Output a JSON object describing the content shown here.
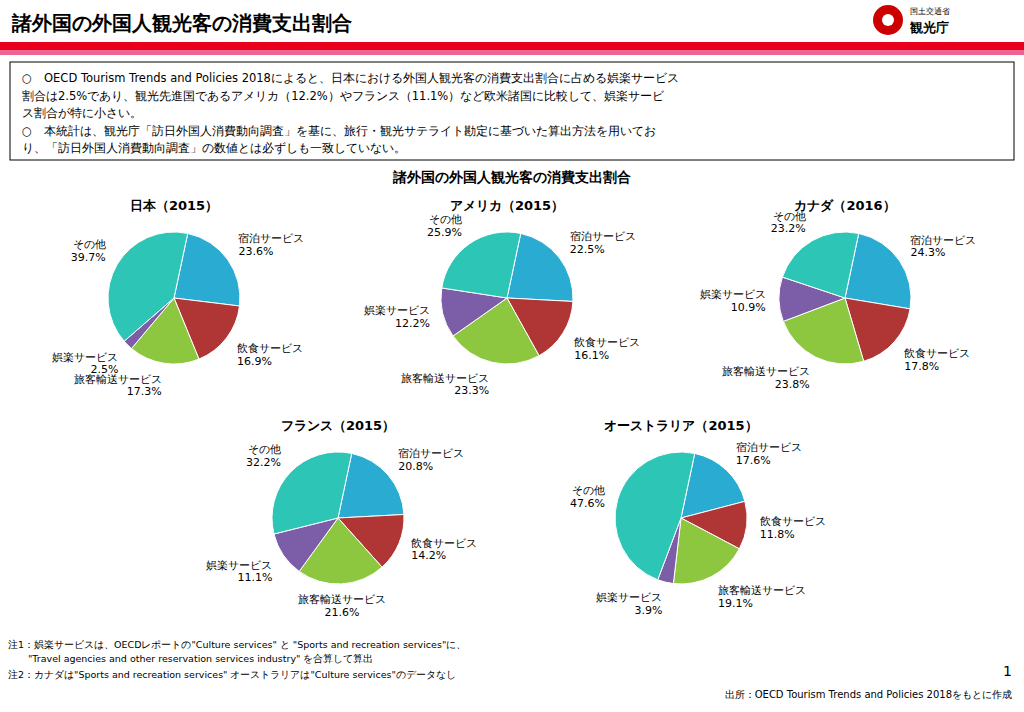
{
  "title": "諸外国の外国人観光客の消費支出割合",
  "subtitle": "諸外国の外国人観光客の消費支出割合",
  "annotations": [
    "○　OECD Tourism Trends and Policies 2018によると、日本における外国人観光客の消費支出割合に占める娯楽サービス",
    "割合は2.5%であり、観光先進国であるアメリカ（12.2%）やフランス（11.1%）など欧米諸国に比較して、娯楽サービ",
    "ス割合が特に小さい。",
    "○　本統計は、観光庁「訪日外国人消費動向調査」を基に、旅行・観光サテライト勘定に基づいた算出方法を用いてお",
    "り、「訪日外国人消費動向調査」の数値とは必ずしも一致していない。",
    "注1：娯楽サービスは、OECDレポートの\"Culture services\" と \"Sports and recreation services\"に、",
    "　　\"Travel agencies and other reservation services industry\" を合算して算出",
    "注2：カナダは\"Sports and recreation services\" オーストラリアは\"Culture services\"のデータなし",
    "出所：OECD Tourism Trends and Policies 2018をもとに作成",
    "1",
    "国土交通省",
    "観光庁"
  ],
  "chart_data": [
    {
      "type": "pie",
      "title": "日本（2015）",
      "categories": [
        "宿泊サービス",
        "飲食サービス",
        "旅客輸送サービス",
        "娯楽サービス",
        "その他"
      ],
      "values": [
        23.6,
        16.9,
        17.3,
        2.5,
        39.7
      ],
      "value_labels": [
        "23.6%",
        "16.9%",
        "17.3%",
        "2.5%",
        "39.7%"
      ],
      "colors": [
        "#2aabd2",
        "#b03535",
        "#8dc63f",
        "#7b5ea7",
        "#2dc5b6"
      ],
      "data_labels": true
    },
    {
      "type": "pie",
      "title": "アメリカ（2015）",
      "categories": [
        "宿泊サービス",
        "飲食サービス",
        "旅客輸送サービス",
        "娯楽サービス",
        "その他"
      ],
      "values": [
        22.5,
        16.1,
        23.3,
        12.2,
        25.9
      ],
      "value_labels": [
        "22.5%",
        "16.1%",
        "23.3%",
        "12.2%",
        "25.9%"
      ],
      "colors": [
        "#2aabd2",
        "#b03535",
        "#8dc63f",
        "#7b5ea7",
        "#2dc5b6"
      ],
      "data_labels": true
    },
    {
      "type": "pie",
      "title": "カナダ（2016）",
      "categories": [
        "宿泊サービス",
        "飲食サービス",
        "旅客輸送サービス",
        "娯楽サービス",
        "その他"
      ],
      "values": [
        24.3,
        17.8,
        23.8,
        10.9,
        23.2
      ],
      "value_labels": [
        "24.3%",
        "17.8%",
        "23.8%",
        "10.9%",
        "23.2%"
      ],
      "colors": [
        "#2aabd2",
        "#b03535",
        "#8dc63f",
        "#7b5ea7",
        "#2dc5b6"
      ],
      "data_labels": true
    },
    {
      "type": "pie",
      "title": "フランス（2015）",
      "categories": [
        "宿泊サービス",
        "飲食サービス",
        "旅客輸送サービス",
        "娯楽サービス",
        "その他"
      ],
      "values": [
        20.8,
        14.2,
        21.6,
        11.1,
        32.2
      ],
      "value_labels": [
        "20.8%",
        "14.2%",
        "21.6%",
        "11.1%",
        "32.2%"
      ],
      "colors": [
        "#2aabd2",
        "#b03535",
        "#8dc63f",
        "#7b5ea7",
        "#2dc5b6"
      ],
      "data_labels": true
    },
    {
      "type": "pie",
      "title": "オーストラリア（2015）",
      "categories": [
        "宿泊サービス",
        "飲食サービス",
        "旅客輸送サービス",
        "娯楽サービス",
        "その他"
      ],
      "values": [
        17.6,
        11.8,
        19.1,
        3.9,
        47.6
      ],
      "value_labels": [
        "17.6%",
        "11.8%",
        "19.1%",
        "3.9%",
        "47.6%"
      ],
      "colors": [
        "#2aabd2",
        "#b03535",
        "#8dc63f",
        "#7b5ea7",
        "#2dc5b6"
      ],
      "data_labels": true
    }
  ]
}
